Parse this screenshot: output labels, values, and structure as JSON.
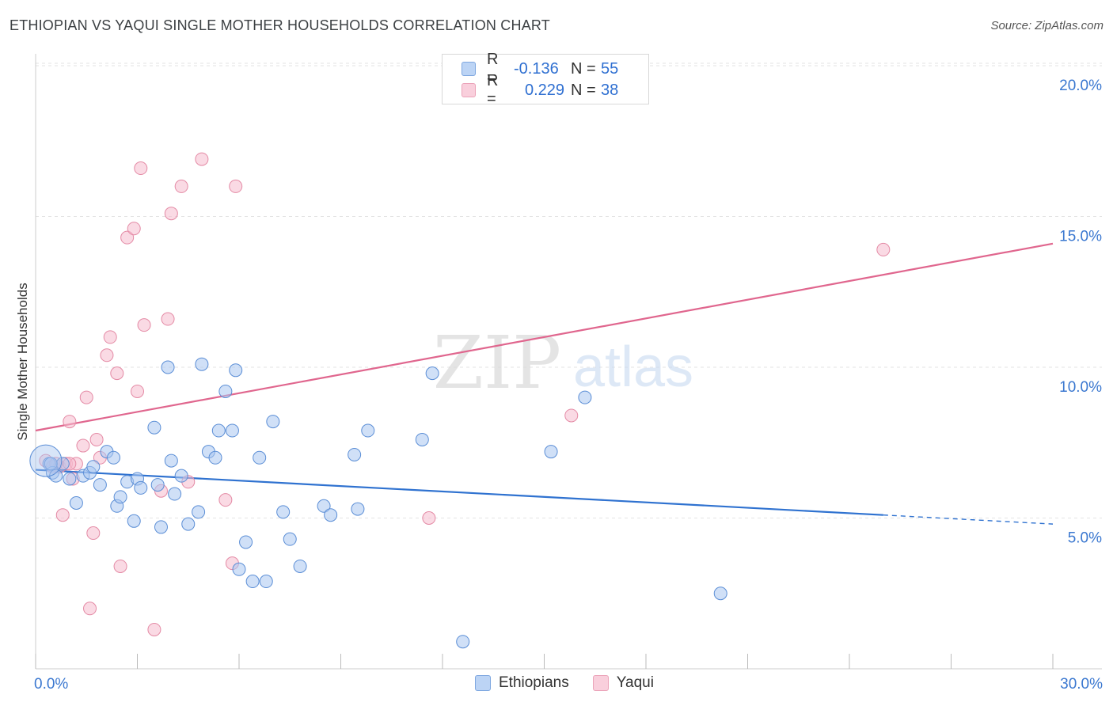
{
  "title": "ETHIOPIAN VS YAQUI SINGLE MOTHER HOUSEHOLDS CORRELATION CHART",
  "source": "Source: ZipAtlas.com",
  "watermark": {
    "zip": "ZIP",
    "atlas": "atlas"
  },
  "colors": {
    "ethiopians_fill": "#a9c6f0",
    "ethiopians_stroke": "#5b8ed6",
    "ethiopians_line": "#2f72d0",
    "yaqui_fill": "#f6bccd",
    "yaqui_stroke": "#e48aa5",
    "yaqui_line": "#e0668e",
    "axis_text": "#3b78d0",
    "grid": "#e3e3e3"
  },
  "legend": {
    "rows": [
      {
        "r_label": "R =",
        "r_value": "-0.136",
        "n_label": "N =",
        "n_value": "55"
      },
      {
        "r_label": "R =",
        "r_value": "0.229",
        "n_label": "N =",
        "n_value": "38"
      }
    ]
  },
  "chart_data": {
    "type": "scatter",
    "title": "ETHIOPIAN VS YAQUI SINGLE MOTHER HOUSEHOLDS CORRELATION CHART",
    "xlabel": "",
    "ylabel": "Single Mother Households",
    "xlim": [
      0,
      30
    ],
    "ylim": [
      0,
      20
    ],
    "x_tick_labels": [
      "0.0%",
      "30.0%"
    ],
    "y_ticks": [
      5,
      10,
      15,
      20
    ],
    "y_tick_labels": [
      "5.0%",
      "10.0%",
      "15.0%",
      "20.0%"
    ],
    "series": [
      {
        "name": "Ethiopians",
        "trend": {
          "x0": 0,
          "y0": 6.6,
          "x1": 25,
          "y1": 5.1,
          "dash_to_x": 30,
          "dash_to_y": 4.8
        },
        "points": [
          [
            0.4,
            6.8
          ],
          [
            0.5,
            6.5
          ],
          [
            0.6,
            6.4
          ],
          [
            0.8,
            6.8
          ],
          [
            1.0,
            6.3
          ],
          [
            1.2,
            5.5
          ],
          [
            1.4,
            6.4
          ],
          [
            1.6,
            6.5
          ],
          [
            1.7,
            6.7
          ],
          [
            1.9,
            6.1
          ],
          [
            2.1,
            7.2
          ],
          [
            2.3,
            7.0
          ],
          [
            2.4,
            5.4
          ],
          [
            2.5,
            5.7
          ],
          [
            2.7,
            6.2
          ],
          [
            2.9,
            4.9
          ],
          [
            3.0,
            6.3
          ],
          [
            3.1,
            6.0
          ],
          [
            3.5,
            8.0
          ],
          [
            3.6,
            6.1
          ],
          [
            3.7,
            4.7
          ],
          [
            3.9,
            10.0
          ],
          [
            4.0,
            6.9
          ],
          [
            4.1,
            5.8
          ],
          [
            4.3,
            6.4
          ],
          [
            4.5,
            4.8
          ],
          [
            4.8,
            5.2
          ],
          [
            4.9,
            10.1
          ],
          [
            5.1,
            7.2
          ],
          [
            5.3,
            7.0
          ],
          [
            5.4,
            7.9
          ],
          [
            5.6,
            9.2
          ],
          [
            5.8,
            7.9
          ],
          [
            5.9,
            9.9
          ],
          [
            6.0,
            3.3
          ],
          [
            6.2,
            4.2
          ],
          [
            6.4,
            2.9
          ],
          [
            6.6,
            7.0
          ],
          [
            6.8,
            2.9
          ],
          [
            7.0,
            8.2
          ],
          [
            7.3,
            5.2
          ],
          [
            7.5,
            4.3
          ],
          [
            7.8,
            3.4
          ],
          [
            8.5,
            5.4
          ],
          [
            8.7,
            5.1
          ],
          [
            9.4,
            7.1
          ],
          [
            9.5,
            5.3
          ],
          [
            9.8,
            7.9
          ],
          [
            11.4,
            7.6
          ],
          [
            11.7,
            9.8
          ],
          [
            12.6,
            0.9
          ],
          [
            15.2,
            7.2
          ],
          [
            16.2,
            9.0
          ],
          [
            20.2,
            2.5
          ],
          [
            0.45,
            6.8
          ]
        ]
      },
      {
        "name": "Yaqui",
        "trend": {
          "x0": 0,
          "y0": 7.9,
          "x1": 30,
          "y1": 14.1
        },
        "points": [
          [
            0.3,
            6.9
          ],
          [
            0.5,
            6.7
          ],
          [
            0.7,
            6.7
          ],
          [
            0.8,
            5.1
          ],
          [
            0.9,
            6.8
          ],
          [
            1.0,
            8.2
          ],
          [
            1.1,
            6.3
          ],
          [
            1.2,
            6.8
          ],
          [
            1.4,
            7.4
          ],
          [
            1.5,
            9.0
          ],
          [
            1.7,
            4.5
          ],
          [
            1.8,
            7.6
          ],
          [
            1.9,
            7.0
          ],
          [
            2.1,
            10.4
          ],
          [
            2.2,
            11.0
          ],
          [
            2.4,
            9.8
          ],
          [
            2.5,
            3.4
          ],
          [
            2.7,
            14.3
          ],
          [
            2.9,
            14.6
          ],
          [
            3.0,
            9.2
          ],
          [
            3.1,
            16.6
          ],
          [
            3.2,
            11.4
          ],
          [
            3.5,
            1.3
          ],
          [
            3.7,
            5.9
          ],
          [
            3.9,
            11.6
          ],
          [
            4.0,
            15.1
          ],
          [
            4.3,
            16.0
          ],
          [
            4.5,
            6.2
          ],
          [
            4.9,
            16.9
          ],
          [
            5.6,
            5.6
          ],
          [
            5.8,
            3.5
          ],
          [
            5.9,
            16.0
          ],
          [
            1.6,
            2.0
          ],
          [
            11.6,
            5.0
          ],
          [
            15.8,
            8.4
          ],
          [
            25.0,
            13.9
          ],
          [
            0.6,
            6.8
          ],
          [
            1.0,
            6.8
          ]
        ]
      }
    ]
  }
}
